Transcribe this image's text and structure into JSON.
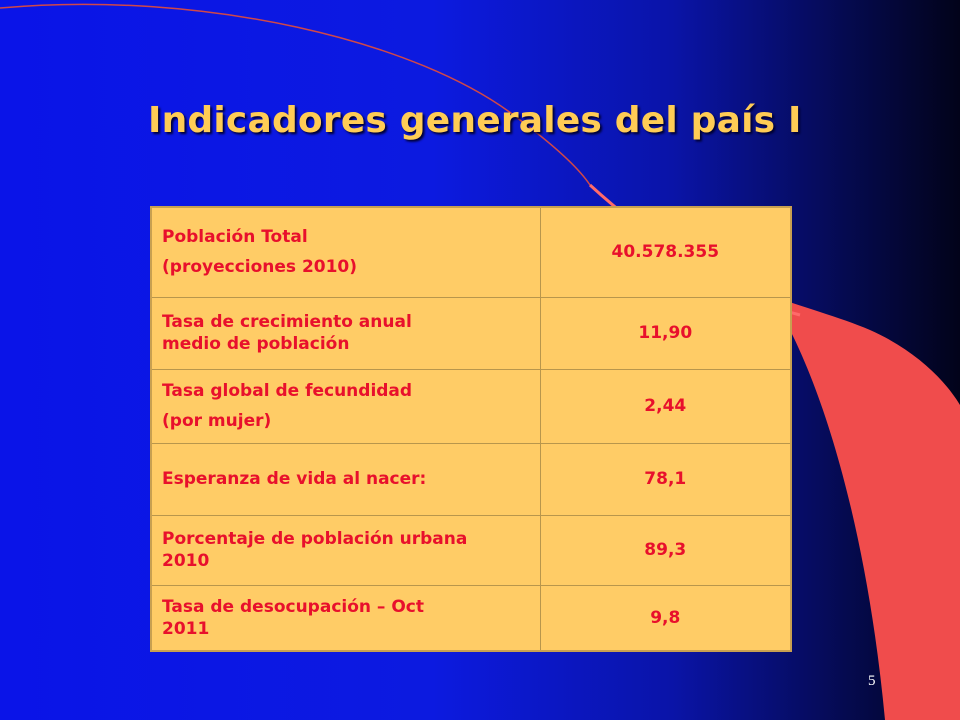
{
  "slide": {
    "title": "Indicadores generales del país I",
    "page_number": "5",
    "colors": {
      "background": "#0c1ae0",
      "title": "#ffcc55",
      "table_fill": "#ffcc66",
      "table_text": "#e8102c",
      "accent_swoosh": "#f04c4c"
    }
  },
  "table": {
    "rows": [
      {
        "label_lines": [
          "Población Total",
          "(proyecciones 2010)"
        ],
        "value": "40.578.355"
      },
      {
        "label_lines": [
          "Tasa de crecimiento anual",
          "medio de población"
        ],
        "value": "11,90"
      },
      {
        "label_lines": [
          "Tasa global de fecundidad",
          "(por mujer)"
        ],
        "value": "2,44"
      },
      {
        "label_lines": [
          "Esperanza de vida al nacer:"
        ],
        "value": "78,1"
      },
      {
        "label_lines": [
          "Porcentaje de población urbana",
          "2010"
        ],
        "value": "89,3"
      },
      {
        "label_lines": [
          "Tasa de desocupación – Oct",
          "2011"
        ],
        "value": "9,8"
      }
    ]
  }
}
